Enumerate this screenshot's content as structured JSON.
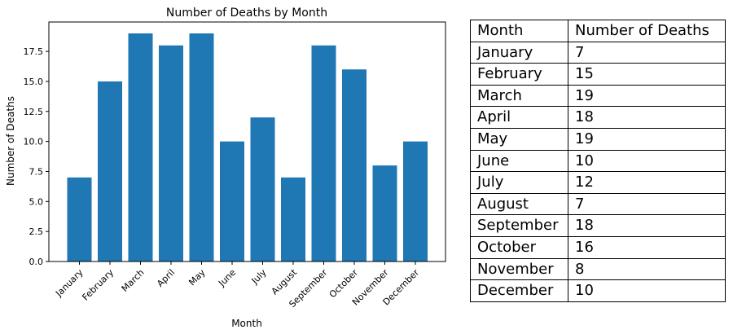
{
  "chart_data": {
    "type": "bar",
    "title": "Number of Deaths by Month",
    "xlabel": "Month",
    "ylabel": "Number of Deaths",
    "categories": [
      "January",
      "February",
      "March",
      "April",
      "May",
      "June",
      "July",
      "August",
      "September",
      "October",
      "November",
      "December"
    ],
    "values": [
      7,
      15,
      19,
      18,
      19,
      10,
      12,
      7,
      18,
      16,
      8,
      10
    ],
    "ylim": [
      0,
      19.95
    ],
    "yticks": [
      "0.0",
      "2.5",
      "5.0",
      "7.5",
      "10.0",
      "12.5",
      "15.0",
      "17.5"
    ],
    "bar_color": "#1f77b4",
    "grid": false
  },
  "table": {
    "headers": [
      "Month",
      "Number of Deaths"
    ],
    "rows": [
      [
        "January",
        "7"
      ],
      [
        "February",
        "15"
      ],
      [
        "March",
        "19"
      ],
      [
        "April",
        "18"
      ],
      [
        "May",
        "19"
      ],
      [
        "June",
        "10"
      ],
      [
        "July",
        "12"
      ],
      [
        "August",
        "7"
      ],
      [
        "September",
        "18"
      ],
      [
        "October",
        "16"
      ],
      [
        "November",
        "8"
      ],
      [
        "December",
        "10"
      ]
    ]
  }
}
